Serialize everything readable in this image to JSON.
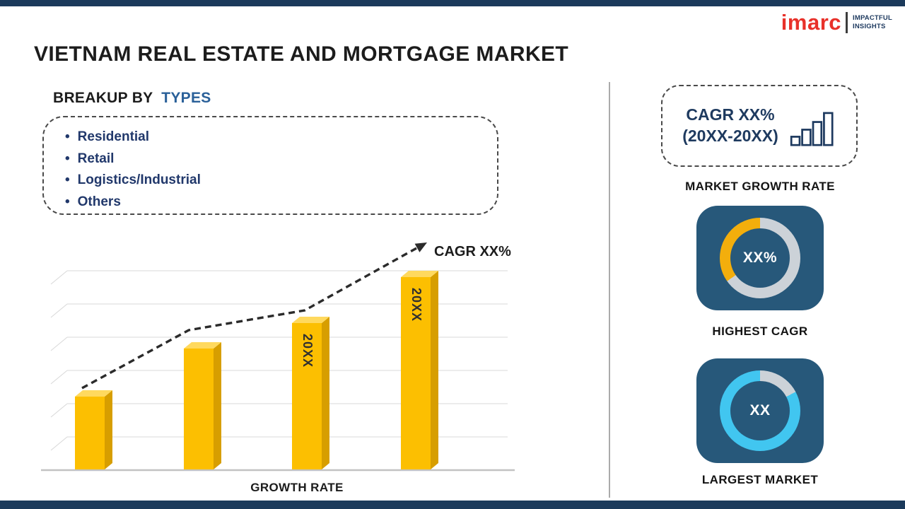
{
  "colors": {
    "bar_accent": "#1b3a5b",
    "card_bg": "#27587a",
    "navy_text": "#1e3a5f",
    "list_text": "#21386b",
    "heading_accent": "#2a6099",
    "logo_red": "#e8312a",
    "title_color": "#1c1c1c"
  },
  "header": {
    "title": "VIETNAM REAL ESTATE AND MORTGAGE MARKET",
    "logo": {
      "name": "imarc",
      "tagline": [
        "IMPACTFUL",
        "INSIGHTS"
      ]
    }
  },
  "breakup": {
    "heading_prefix": "BREAKUP BY",
    "heading_accent": "TYPES",
    "items": [
      "Residential",
      "Retail",
      "Logistics/Industrial",
      "Others"
    ]
  },
  "growth_rate_box": {
    "line1": "CAGR XX%",
    "line2": "(20XX-20XX)",
    "caption": "MARKET GROWTH RATE"
  },
  "chart_data": [
    {
      "type": "bar",
      "title": "",
      "xlabel": "GROWTH RATE",
      "ylabel": "",
      "categories": [
        "",
        "",
        "20XX",
        "20XX"
      ],
      "values": [
        38,
        63,
        76,
        100
      ],
      "value_note": "relative heights as % of tallest bar; numeric values not labeled in image",
      "annotation": "CAGR XX%",
      "trend": "rising dashed arrow above bars",
      "bar_color": "#fcbf01",
      "bar_side_color": "#d79e00",
      "bar_top_color": "#ffd95e",
      "grid": true,
      "legend": false
    },
    {
      "type": "donut",
      "caption": "HIGHEST CAGR",
      "center_text": "XX%",
      "track_color": "#ccd2d8",
      "highlight": {
        "color": "#f3ae0c",
        "start_deg": 235,
        "end_deg": 360
      }
    },
    {
      "type": "donut",
      "caption": "LARGEST MARKET",
      "center_text": "XX",
      "track_color": "#ccd2d8",
      "highlight": {
        "color": "#41c6f0",
        "start_deg": 62,
        "end_deg": 360
      }
    }
  ]
}
